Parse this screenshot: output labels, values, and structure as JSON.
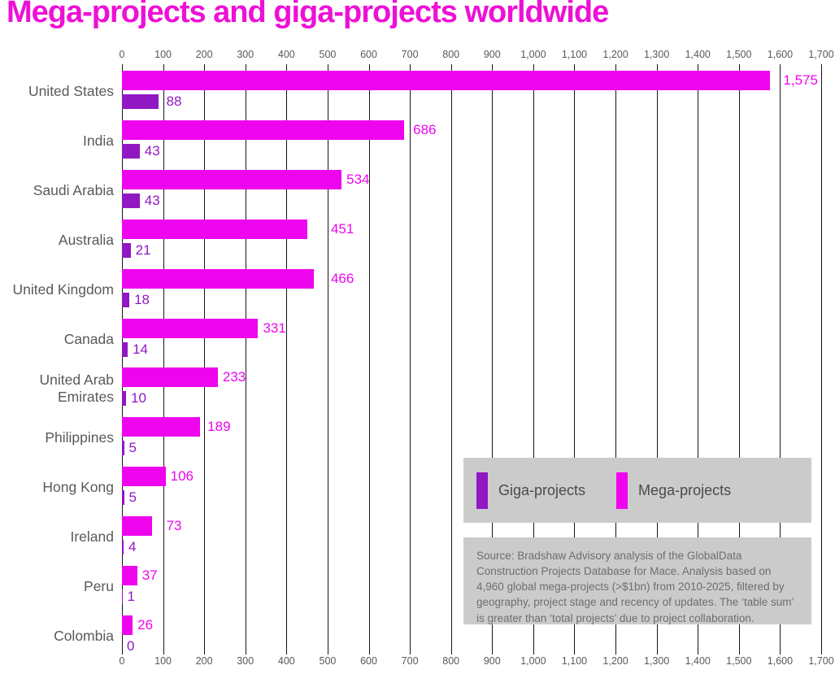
{
  "title": "Mega-projects and giga-projects worldwide",
  "colors": {
    "title": "#ee10d6",
    "mega": "#ee05ee",
    "giga": "#9117c3",
    "axis_text": "#595959",
    "category_text": "#595959",
    "legend_text": "#4b4b4b",
    "box_background": "#cbcbcb",
    "source_text": "#6e6e6e",
    "gridline": "#161616"
  },
  "chart_data": {
    "type": "bar",
    "orientation": "horizontal",
    "title": "Mega-projects and giga-projects worldwide",
    "categories": [
      "United States",
      "India",
      "Saudi Arabia",
      "Australia",
      "United Kingdom",
      "Canada",
      "United Arab Emirates",
      "Philippines",
      "Hong Kong",
      "Ireland",
      "Peru",
      "Colombia"
    ],
    "series": [
      {
        "name": "Mega-projects",
        "color_key": "mega",
        "values": [
          1575,
          686,
          534,
          451,
          466,
          331,
          233,
          189,
          106,
          73,
          37,
          26
        ],
        "value_labels": [
          "1,575",
          "686",
          "534",
          "451",
          "466",
          "331",
          "233",
          "189",
          "106",
          "73",
          "37",
          "26"
        ]
      },
      {
        "name": "Giga-projects",
        "color_key": "giga",
        "values": [
          88,
          43,
          43,
          21,
          18,
          14,
          10,
          5,
          5,
          4,
          1,
          0
        ],
        "value_labels": [
          "88",
          "43",
          "43",
          "21",
          "18",
          "14",
          "10",
          "5",
          "5",
          "4",
          "1",
          "0"
        ]
      }
    ],
    "xlim": [
      0,
      1700
    ],
    "x_tick_step": 100,
    "x_tick_labels": [
      "0",
      "100",
      "200",
      "300",
      "400",
      "500",
      "600",
      "700",
      "800",
      "900",
      "1,000",
      "1,100",
      "1,200",
      "1,300",
      "1,400",
      "1,500",
      "1,600",
      "1,700"
    ],
    "grid": true,
    "axis_positions": [
      "top",
      "bottom"
    ],
    "legend_position": "inside-right",
    "xlabel": "",
    "ylabel": ""
  },
  "legend": {
    "items": [
      {
        "label": "Giga-projects",
        "color_key": "giga"
      },
      {
        "label": "Mega-projects",
        "color_key": "mega"
      }
    ]
  },
  "source_note": "Source: Bradshaw Advisory analysis of the GlobalData Construction Projects Database for Mace. Analysis based on 4,960 global mega-projects (>$1bn) from 2010-2025, filtered by geography, project stage and recency of updates. The ‘table sum’ is greater than ‘total projects’ due to project collaboration."
}
